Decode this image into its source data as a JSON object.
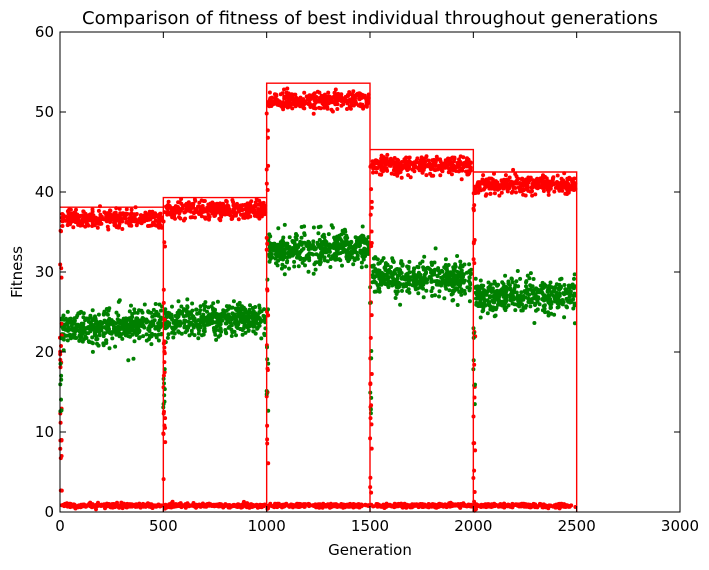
{
  "chart_data": {
    "type": "scatter",
    "title": "Comparison of fitness of best individual throughout generations",
    "xlabel": "Generation",
    "ylabel": "Fitness",
    "xlim": [
      0,
      3000
    ],
    "ylim": [
      0,
      60
    ],
    "xticks": [
      0,
      500,
      1000,
      1500,
      2000,
      2500,
      3000
    ],
    "yticks": [
      0,
      10,
      20,
      30,
      40,
      50,
      60
    ],
    "xtick_labels": [
      "0",
      "500",
      "1000",
      "1500",
      "2000",
      "2500",
      "3000"
    ],
    "ytick_labels": [
      "0",
      "10",
      "20",
      "30",
      "40",
      "50",
      "60"
    ],
    "grid": false,
    "legend": "none",
    "segments": [
      {
        "x_start": 0,
        "x_end": 500,
        "max": 38.1,
        "red_level": 36.7,
        "green_level": 23.3
      },
      {
        "x_start": 500,
        "x_end": 1000,
        "max": 39.3,
        "red_level": 37.8,
        "green_level": 24.1
      },
      {
        "x_start": 1000,
        "x_end": 1500,
        "max": 53.6,
        "red_level": 51.5,
        "green_level": 33.0
      },
      {
        "x_start": 1500,
        "x_end": 2000,
        "max": 45.3,
        "red_level": 43.3,
        "green_level": 29.2
      },
      {
        "x_start": 2000,
        "x_end": 2500,
        "max": 42.5,
        "red_level": 40.9,
        "green_level": 27.1
      }
    ],
    "floor_level": 0.8,
    "series": [
      {
        "color": "#ff0000",
        "kind": "scatter-upper"
      },
      {
        "color": "#008000",
        "kind": "scatter-middle"
      },
      {
        "color": "#ff0000",
        "kind": "scatter-floor"
      },
      {
        "color": "#ff0000",
        "kind": "step-max"
      }
    ]
  }
}
